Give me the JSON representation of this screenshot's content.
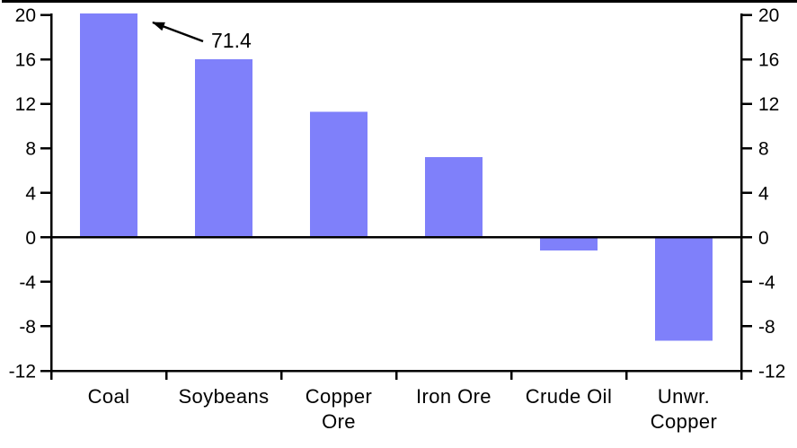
{
  "chart_data": {
    "type": "bar",
    "title": "",
    "categories": [
      "Coal",
      "Soybeans",
      "Copper Ore",
      "Iron Ore",
      "Crude Oil",
      "Unwr. Copper"
    ],
    "category_lines": [
      [
        "Coal"
      ],
      [
        "Soybeans"
      ],
      [
        "Copper",
        "Ore"
      ],
      [
        "Iron Ore"
      ],
      [
        "Crude Oil"
      ],
      [
        "Unwr.",
        "Copper"
      ]
    ],
    "values": [
      71.4,
      16.0,
      11.3,
      7.2,
      -1.2,
      -9.3
    ],
    "values_clipped_to_ylim": true,
    "ylim": [
      -12,
      20
    ],
    "yticks": [
      20,
      16,
      12,
      8,
      4,
      0,
      -4,
      -8,
      -12
    ],
    "ytick_labels": [
      "20",
      "16",
      "12",
      "8",
      "4",
      "0",
      "-4",
      "-8",
      "-12"
    ],
    "dual_y_axis": true,
    "grid": false,
    "legend": null,
    "zero_line": true,
    "annotation": {
      "text": "71.4",
      "category": "Coal"
    },
    "colors": {
      "bar": "#7f80fa",
      "axis": "#000000",
      "text": "#000000",
      "background": "#ffffff"
    }
  }
}
